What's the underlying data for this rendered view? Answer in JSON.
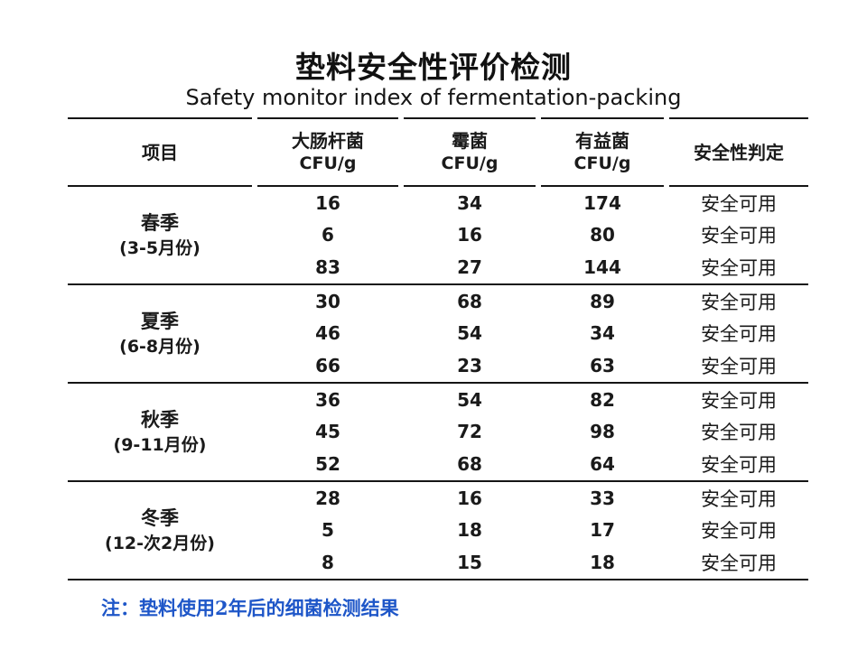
{
  "title": "垫料安全性评价检测",
  "subtitle": "Safety monitor index of fermentation-packing",
  "colors": {
    "line": "#151515",
    "note_blue": "#1e56c8",
    "text": "#1a1a1a"
  },
  "table": {
    "headers": {
      "item": "项目",
      "ecoli_name": "大肠杆菌",
      "ecoli_unit": "CFU/g",
      "mold_name": "霉菌",
      "mold_unit": "CFU/g",
      "beneficial_name": "有益菌",
      "beneficial_unit": "CFU/g",
      "verdict": "安全性判定"
    },
    "sections": [
      {
        "season": "春季",
        "months": "(3-5月份)",
        "rows": [
          {
            "ecoli": "16",
            "mold": "34",
            "beneficial": "174",
            "verdict": "安全可用"
          },
          {
            "ecoli": "6",
            "mold": "16",
            "beneficial": "80",
            "verdict": "安全可用"
          },
          {
            "ecoli": "83",
            "mold": "27",
            "beneficial": "144",
            "verdict": "安全可用"
          }
        ]
      },
      {
        "season": "夏季",
        "months": "(6-8月份)",
        "rows": [
          {
            "ecoli": "30",
            "mold": "68",
            "beneficial": "89",
            "verdict": "安全可用"
          },
          {
            "ecoli": "46",
            "mold": "54",
            "beneficial": "34",
            "verdict": "安全可用"
          },
          {
            "ecoli": "66",
            "mold": "23",
            "beneficial": "63",
            "verdict": "安全可用"
          }
        ]
      },
      {
        "season": "秋季",
        "months": "(9-11月份)",
        "rows": [
          {
            "ecoli": "36",
            "mold": "54",
            "beneficial": "82",
            "verdict": "安全可用"
          },
          {
            "ecoli": "45",
            "mold": "72",
            "beneficial": "98",
            "verdict": "安全可用"
          },
          {
            "ecoli": "52",
            "mold": "68",
            "beneficial": "64",
            "verdict": "安全可用"
          }
        ]
      },
      {
        "season": "冬季",
        "months": "(12-次2月份)",
        "rows": [
          {
            "ecoli": "28",
            "mold": "16",
            "beneficial": "33",
            "verdict": "安全可用"
          },
          {
            "ecoli": "5",
            "mold": "18",
            "beneficial": "17",
            "verdict": "安全可用"
          },
          {
            "ecoli": "8",
            "mold": "15",
            "beneficial": "18",
            "verdict": "安全可用"
          }
        ]
      }
    ]
  },
  "note": "注：垫料使用2年后的细菌检测结果"
}
